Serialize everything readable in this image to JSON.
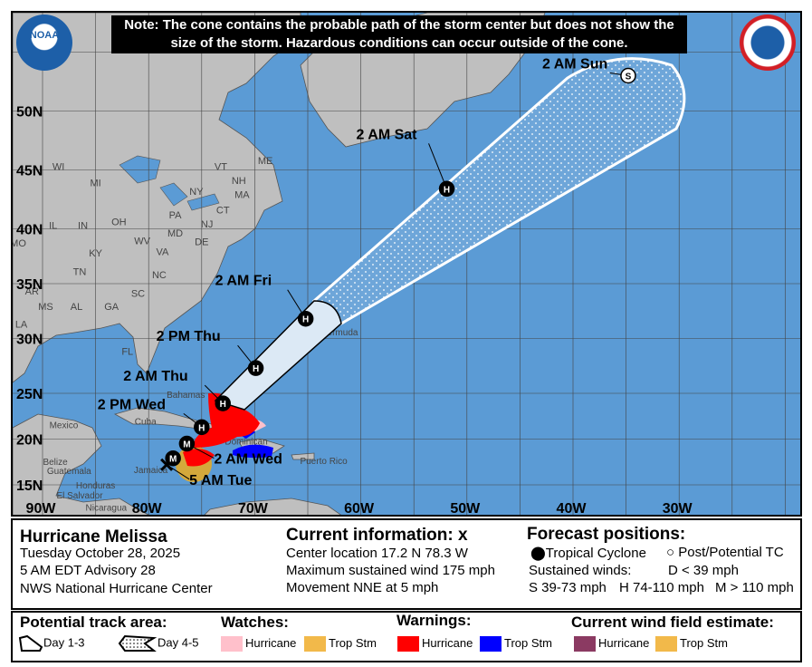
{
  "note": "Note: The cone contains the probable path of the storm center but does not show the size of the storm. Hazardous conditions can occur outside of the cone.",
  "logos": {
    "left": "NOAA",
    "right": "NATIONAL WEATHER SERVICE"
  },
  "colors": {
    "ocean": "#5b9bd5",
    "land": "#bfbfbf",
    "hurricane_warning": "#ff0000",
    "trop_storm_warning": "#0000ff",
    "hurricane_watch": "#ffc0cb",
    "trop_storm_watch": "#f2b94a",
    "wind_hurricane": "#8b3a62",
    "wind_trop_stm": "#f2b94a",
    "cone_day13": "#dce9f5"
  },
  "grid": {
    "lon_labels": [
      "90W",
      "80W",
      "70W",
      "60W",
      "50W",
      "40W",
      "30W"
    ],
    "lat_labels": [
      "50N",
      "45N",
      "40N",
      "35N",
      "30N",
      "25N",
      "20N",
      "15N"
    ]
  },
  "track": [
    {
      "label": "5 AM Tue",
      "type": "current",
      "lat": 17.2,
      "lon": -78.3
    },
    {
      "label": "",
      "type": "M",
      "lat": 17.9,
      "lon": -77.7
    },
    {
      "label": "2 AM Wed",
      "type": "M",
      "lat": 19.5,
      "lon": -76.4
    },
    {
      "label": "2 PM Wed",
      "type": "H",
      "lat": 21.3,
      "lon": -75.0
    },
    {
      "label": "2 AM Thu",
      "type": "H",
      "lat": 23.9,
      "lon": -73.0
    },
    {
      "label": "2 PM Thu",
      "type": "H",
      "lat": 27.3,
      "lon": -69.9
    },
    {
      "label": "2 AM Fri",
      "type": "H",
      "lat": 31.8,
      "lon": -65.2
    },
    {
      "label": "2 AM Sat",
      "type": "H",
      "lat": 43.4,
      "lon": -51.9
    },
    {
      "label": "2 AM Sun",
      "type": "S",
      "lat": 53.0,
      "lon": -34.8
    }
  ],
  "place_labels": [
    "ME",
    "NH",
    "VT",
    "MA",
    "CT",
    "NY",
    "PA",
    "NJ",
    "MD",
    "DE",
    "WV",
    "VA",
    "NC",
    "SC",
    "GA",
    "FL",
    "AL",
    "MS",
    "TN",
    "KY",
    "OH",
    "IN",
    "IL",
    "MI",
    "WI",
    "MO",
    "AR",
    "LA",
    "Mexico",
    "Belize",
    "Guatemala",
    "Honduras",
    "El Salvador",
    "Nicaragua",
    "Cuba",
    "Jamaica",
    "Dominican",
    "Puerto Rico",
    "Bahamas",
    "Bermuda"
  ],
  "info": {
    "storm_name": "Hurricane Melissa",
    "date": "Tuesday October 28, 2025",
    "advisory": "5 AM EDT Advisory 28",
    "center": "NWS National Hurricane Center",
    "current_title": "Current information:",
    "current_symbol": "x",
    "location": "Center location 17.2 N 78.3 W",
    "max_wind": "Maximum sustained wind 175 mph",
    "movement": "Movement NNE at 5 mph",
    "forecast_title": "Forecast positions:",
    "tc_label": "Tropical Cyclone",
    "post_label": "Post/Potential TC",
    "sustained": "Sustained winds:",
    "d_def": "D < 39 mph",
    "s_def": "S 39-73 mph",
    "h_def": "H 74-110 mph",
    "m_def": "M > 110 mph"
  },
  "legend": {
    "track_title": "Potential track area:",
    "day13": "Day 1-3",
    "day45": "Day 4-5",
    "watches_title": "Watches:",
    "warnings_title": "Warnings:",
    "wind_title": "Current wind field estimate:",
    "hurricane": "Hurricane",
    "trop_stm": "Trop Stm"
  }
}
